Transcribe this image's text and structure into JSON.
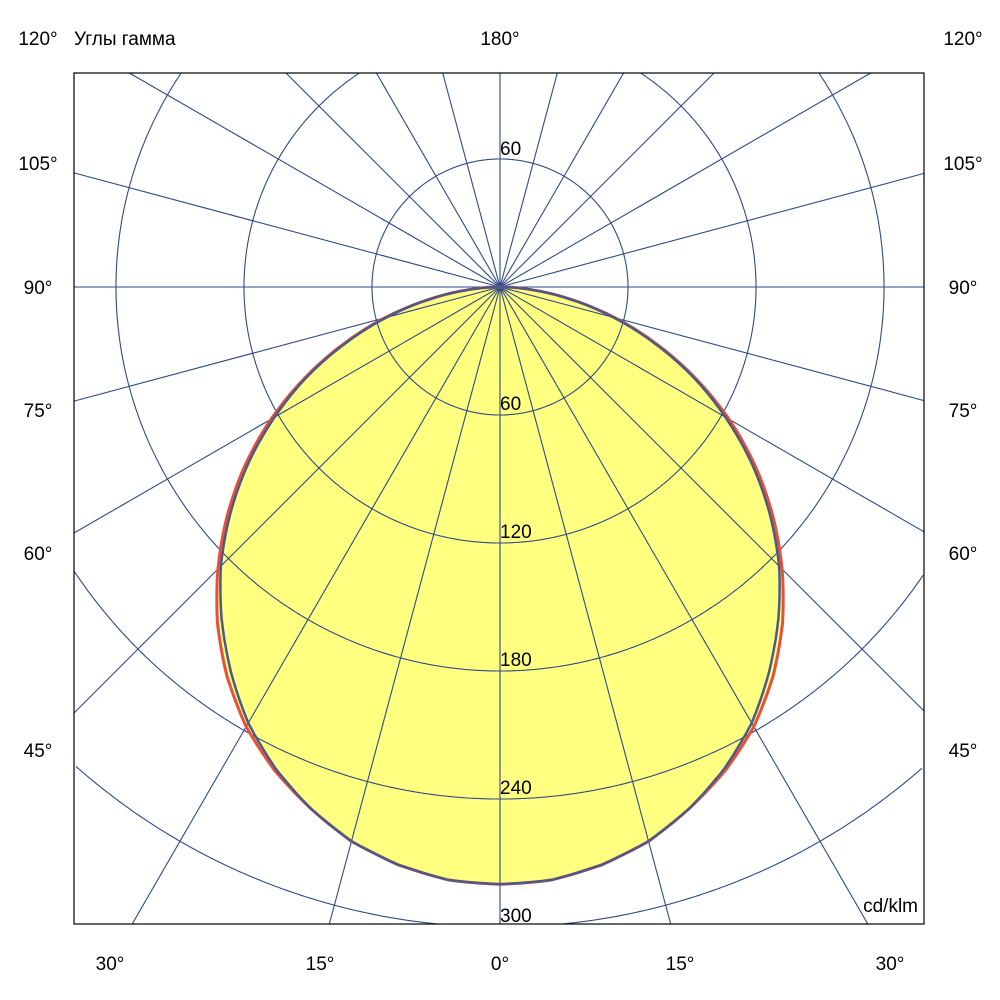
{
  "chart_data": {
    "type": "polar",
    "title": "Углы гамма",
    "unit": "cd/klm",
    "top_label": "180°",
    "side_labels": [
      "120°",
      "105°",
      "90°",
      "75°",
      "60°",
      "45°"
    ],
    "bottom_labels": [
      "30°",
      "15°",
      "0°",
      "15°",
      "30°"
    ],
    "ring_values": [
      60,
      120,
      180,
      240,
      300
    ],
    "ring_labels": [
      "60",
      "120",
      "180",
      "240",
      "300"
    ],
    "upper_ring_label": "60",
    "ray_step_deg": 15,
    "grid": true,
    "gamma": [
      0,
      5,
      10,
      15,
      20,
      25,
      30,
      35,
      40,
      45,
      50,
      55,
      60,
      65,
      70,
      75,
      80,
      85,
      90
    ],
    "series": [
      {
        "color": "#e8503a",
        "values": [
          280,
          279,
          275,
          269,
          260,
          250,
          238,
          223,
          206,
          187,
          167,
          146,
          124,
          101,
          78,
          56,
          34,
          15,
          0
        ]
      },
      {
        "color": "#4a5a8a",
        "values": [
          280,
          279,
          275,
          269,
          260,
          249,
          236,
          220,
          203,
          185,
          165,
          144,
          122,
          100,
          77,
          55,
          34,
          15,
          0
        ]
      }
    ],
    "colors": {
      "fill": "#ffff80",
      "grid": "#2e4a87",
      "frame": "#000000"
    }
  }
}
